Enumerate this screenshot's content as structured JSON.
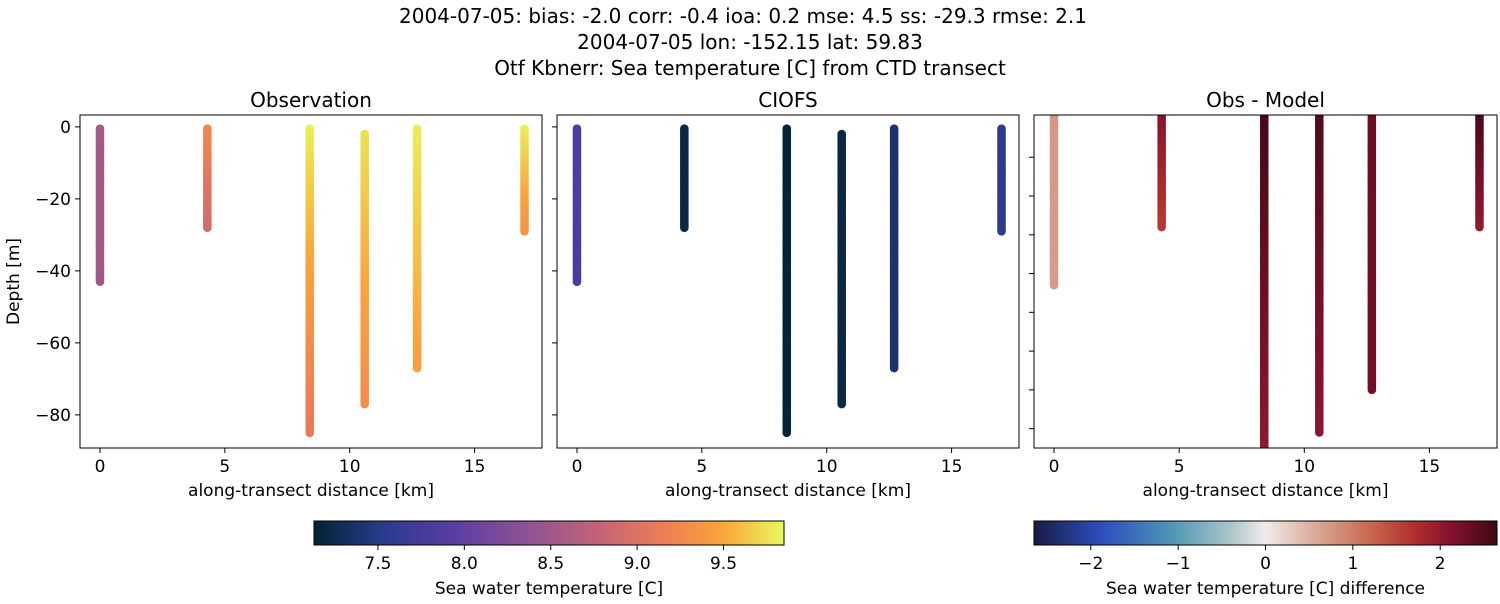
{
  "title_lines": [
    "2004-07-05: bias: -2.0  corr: -0.4  ioa: 0.2  mse: 4.5  ss: -29.3  rmse: 2.1",
    "2004-07-05 lon: -152.15 lat: 59.83",
    "Otf Kbnerr: Sea temperature [C] from CTD transect"
  ],
  "chart_data": [
    {
      "type": "scatter",
      "title": "Observation",
      "xlabel": "along-transect distance [km]",
      "ylabel": "Depth [m]",
      "xlim": [
        -0.8,
        17.7
      ],
      "ylim": [
        -89.2,
        3.3
      ],
      "xticks": [
        0,
        5,
        10,
        15
      ],
      "yticks": [
        0,
        -20,
        -40,
        -60,
        -80
      ],
      "colormap": "thermal",
      "clim": [
        7.13,
        9.85
      ],
      "casts": [
        {
          "x": 0.0,
          "depth_top": -0.5,
          "depth_bottom": -43,
          "value_top": 8.55,
          "value_bottom": 8.5
        },
        {
          "x": 4.3,
          "depth_top": -0.5,
          "depth_bottom": -28,
          "value_top": 9.25,
          "value_bottom": 8.9
        },
        {
          "x": 8.4,
          "depth_top": -0.5,
          "depth_bottom": -85,
          "value_top": 9.8,
          "value_bottom": 9.1
        },
        {
          "x": 10.6,
          "depth_top": -2,
          "depth_bottom": -77,
          "value_top": 9.75,
          "value_bottom": 9.3
        },
        {
          "x": 12.7,
          "depth_top": -0.5,
          "depth_bottom": -67,
          "value_top": 9.8,
          "value_bottom": 9.45
        },
        {
          "x": 17.0,
          "depth_top": -0.5,
          "depth_bottom": -29,
          "value_top": 9.8,
          "value_bottom": 9.35
        }
      ]
    },
    {
      "type": "scatter",
      "title": "CIOFS",
      "xlabel": "along-transect distance [km]",
      "xlim": [
        -0.8,
        17.7
      ],
      "ylim": [
        -89.2,
        3.3
      ],
      "xticks": [
        0,
        5,
        10,
        15
      ],
      "yticks": [
        0,
        -20,
        -40,
        -60,
        -80
      ],
      "colormap": "thermal",
      "clim": [
        7.13,
        9.85
      ],
      "casts": [
        {
          "x": 0.0,
          "depth_top": -0.5,
          "depth_bottom": -43,
          "value_top": 7.85,
          "value_bottom": 7.8
        },
        {
          "x": 4.3,
          "depth_top": -0.5,
          "depth_bottom": -28,
          "value_top": 7.2,
          "value_bottom": 7.2
        },
        {
          "x": 8.4,
          "depth_top": -0.5,
          "depth_bottom": -85,
          "value_top": 7.15,
          "value_bottom": 7.15
        },
        {
          "x": 10.6,
          "depth_top": -2,
          "depth_bottom": -77,
          "value_top": 7.2,
          "value_bottom": 7.2
        },
        {
          "x": 12.7,
          "depth_top": -0.5,
          "depth_bottom": -67,
          "value_top": 7.4,
          "value_bottom": 7.4
        },
        {
          "x": 17.0,
          "depth_top": -0.5,
          "depth_bottom": -29,
          "value_top": 7.55,
          "value_bottom": 7.55
        }
      ]
    },
    {
      "type": "scatter",
      "title": "Obs - Model",
      "xlabel": "along-transect distance [km]",
      "xlim": [
        -0.8,
        17.7
      ],
      "ylim": [
        -85,
        0.9
      ],
      "xticks": [
        0,
        5,
        10,
        15
      ],
      "yticks": [
        -10,
        -20,
        -30,
        -40,
        -50,
        -60,
        -70,
        -80
      ],
      "ytick_labels_shown": false,
      "colormap": "balance",
      "clim": [
        -2.65,
        2.65
      ],
      "casts": [
        {
          "x": 0.0,
          "depth_top": 0.5,
          "depth_bottom": -43,
          "value_top": 0.75,
          "value_bottom": 0.7
        },
        {
          "x": 4.3,
          "depth_top": 0.5,
          "depth_bottom": -28,
          "value_top": 2.1,
          "value_bottom": 1.6
        },
        {
          "x": 8.4,
          "depth_top": 0.5,
          "depth_bottom": -90,
          "value_top": 2.6,
          "value_bottom": 2.0
        },
        {
          "x": 10.6,
          "depth_top": 0.5,
          "depth_bottom": -81,
          "value_top": 2.5,
          "value_bottom": 2.05
        },
        {
          "x": 12.7,
          "depth_top": 0.5,
          "depth_bottom": -70,
          "value_top": 2.3,
          "value_bottom": 2.25
        },
        {
          "x": 17.0,
          "depth_top": 0.5,
          "depth_bottom": -28,
          "value_top": 2.55,
          "value_bottom": 2.0
        }
      ]
    }
  ],
  "colorbars": [
    {
      "label": "Sea water temperature [C]",
      "colormap": "thermal",
      "clim": [
        7.13,
        9.85
      ],
      "ticks": [
        7.5,
        8.0,
        8.5,
        9.0,
        9.5
      ],
      "tick_labels": [
        "7.5",
        "8.0",
        "8.5",
        "9.0",
        "9.5"
      ]
    },
    {
      "label": "Sea water temperature [C] difference",
      "colormap": "balance",
      "clim": [
        -2.65,
        2.65
      ],
      "ticks": [
        -2,
        -1,
        0,
        1,
        2
      ],
      "tick_labels": [
        "−2",
        "−1",
        "0",
        "1",
        "2"
      ]
    }
  ],
  "colormaps": {
    "thermal": [
      [
        0,
        "#032333"
      ],
      [
        0.15,
        "#2a3b8f"
      ],
      [
        0.3,
        "#5b3da0"
      ],
      [
        0.45,
        "#8d5295"
      ],
      [
        0.6,
        "#c2627a"
      ],
      [
        0.75,
        "#ee7f55"
      ],
      [
        0.87,
        "#fba43c"
      ],
      [
        1,
        "#e8fa5b"
      ]
    ],
    "balance": [
      [
        0,
        "#181c43"
      ],
      [
        0.15,
        "#2d4fc0"
      ],
      [
        0.3,
        "#4f97b5"
      ],
      [
        0.42,
        "#a6c3c9"
      ],
      [
        0.5,
        "#f1ecec"
      ],
      [
        0.6,
        "#dcae9d"
      ],
      [
        0.72,
        "#c96c52"
      ],
      [
        0.82,
        "#b0302b"
      ],
      [
        0.9,
        "#85112e"
      ],
      [
        1,
        "#3c0912"
      ]
    ]
  }
}
